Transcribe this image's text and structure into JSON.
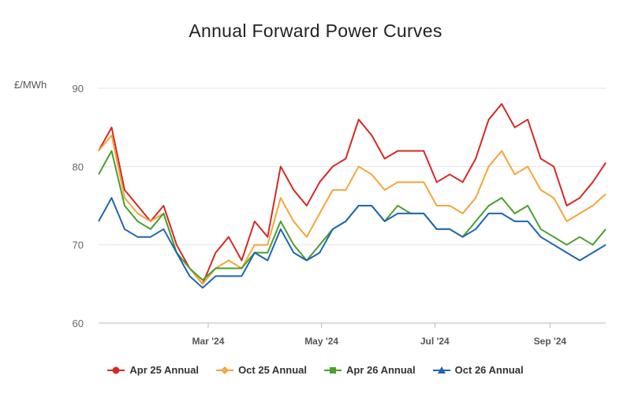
{
  "chart_data": {
    "type": "line",
    "title": "Annual Forward Power Curves",
    "ylabel": "£/MWh",
    "xlabel": "",
    "ylim": [
      60,
      90
    ],
    "yticks": [
      60,
      70,
      80,
      90
    ],
    "xticks": [
      "Mar '24",
      "May '24",
      "Jul '24",
      "Sep '24"
    ],
    "grid": true,
    "legend_position": "bottom",
    "x": [
      "2024-01-02",
      "2024-01-09",
      "2024-01-16",
      "2024-01-23",
      "2024-01-30",
      "2024-02-06",
      "2024-02-13",
      "2024-02-20",
      "2024-02-27",
      "2024-03-05",
      "2024-03-12",
      "2024-03-19",
      "2024-03-26",
      "2024-04-02",
      "2024-04-09",
      "2024-04-16",
      "2024-04-23",
      "2024-04-30",
      "2024-05-07",
      "2024-05-14",
      "2024-05-21",
      "2024-05-28",
      "2024-06-04",
      "2024-06-11",
      "2024-06-18",
      "2024-06-25",
      "2024-07-02",
      "2024-07-09",
      "2024-07-16",
      "2024-07-23",
      "2024-07-30",
      "2024-08-06",
      "2024-08-13",
      "2024-08-20",
      "2024-08-27",
      "2024-09-03",
      "2024-09-10",
      "2024-09-17",
      "2024-09-24",
      "2024-10-01"
    ],
    "series": [
      {
        "name": "Apr 25 Annual",
        "color": "#d42a25",
        "marker": "circle",
        "values": [
          82,
          85,
          77,
          75,
          73,
          75,
          70,
          67,
          65,
          69,
          71,
          68,
          73,
          71,
          80,
          77,
          75,
          78,
          80,
          81,
          86,
          84,
          81,
          82,
          82,
          82,
          78,
          79,
          78,
          81,
          86,
          88,
          85,
          86,
          81,
          80,
          75,
          76,
          78,
          80.5
        ]
      },
      {
        "name": "Oct 25 Annual",
        "color": "#f4a53c",
        "marker": "diamond",
        "values": [
          82,
          84,
          76,
          74,
          73,
          74,
          69,
          67,
          65,
          67,
          68,
          67,
          70,
          70,
          76,
          73,
          71,
          74,
          77,
          77,
          80,
          79,
          77,
          78,
          78,
          78,
          75,
          75,
          74,
          76,
          80,
          82,
          79,
          80,
          77,
          76,
          73,
          74,
          75,
          76.5
        ]
      },
      {
        "name": "Apr 26 Annual",
        "color": "#4b9e2f",
        "marker": "square",
        "values": [
          79,
          82,
          75,
          73,
          72,
          74,
          69,
          67,
          65.5,
          67,
          67,
          67,
          69,
          69,
          73,
          70,
          68,
          70,
          72,
          73,
          75,
          75,
          73,
          75,
          74,
          74,
          72,
          72,
          71,
          73,
          75,
          76,
          74,
          75,
          72,
          71,
          70,
          71,
          70,
          72
        ]
      },
      {
        "name": "Oct 26 Annual",
        "color": "#1f64b5",
        "marker": "triangle",
        "values": [
          73,
          76,
          72,
          71,
          71,
          72,
          69,
          66,
          64.5,
          66,
          66,
          66,
          69,
          68,
          72,
          69,
          68,
          69,
          72,
          73,
          75,
          75,
          73,
          74,
          74,
          74,
          72,
          72,
          71,
          72,
          74,
          74,
          73,
          73,
          71,
          70,
          69,
          68,
          69,
          70
        ]
      }
    ]
  }
}
